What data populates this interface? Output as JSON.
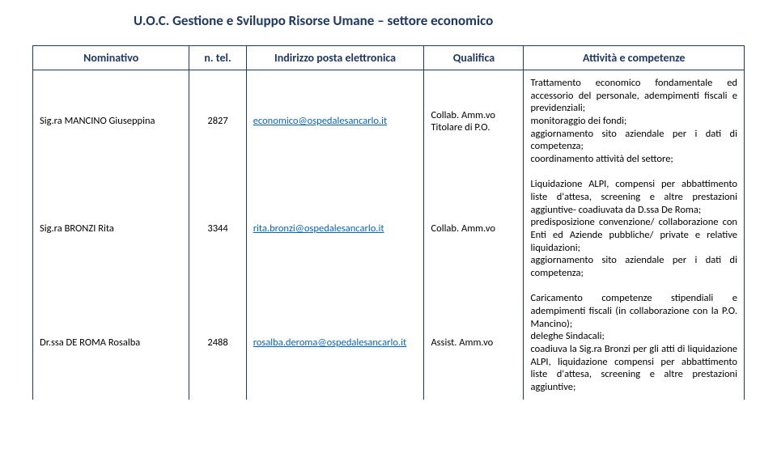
{
  "page_title": "U.O.C. Gestione e Sviluppo Risorse Umane – settore economico",
  "headers": {
    "name": "Nominativo",
    "tel": "n. tel.",
    "email": "Indirizzo posta elettronica",
    "qualifica": "Qualifica",
    "attivita": "Attività e competenze"
  },
  "rows": [
    {
      "name": "Sig.ra MANCINO Giuseppina",
      "tel": "2827",
      "email": "economico@ospedalesancarlo.it",
      "qualifica": "Collab. Amm.vo Titolare di P.O.",
      "attivita": "Trattamento economico fondamentale ed accessorio del personale, adempimenti fiscali e previdenziali;\nmonitoraggio dei fondi;\naggiornamento sito aziendale per i dati di competenza;\ncoordinamento attività del settore;"
    },
    {
      "name": "Sig.ra BRONZI Rita",
      "tel": "3344",
      "email": "rita.bronzi@ospedalesancarlo.it",
      "qualifica": "Collab. Amm.vo",
      "attivita": "Liquidazione ALPI, compensi per abbattimento liste d'attesa, screening e altre prestazioni aggiuntive- coadiuvata da D.ssa De Roma;\npredisposizione convenzione/ collaborazione con Enti ed Aziende pubbliche/ private e relative liquidazioni;\naggiornamento sito aziendale per i dati di competenza;"
    },
    {
      "name": "Dr.ssa DE ROMA Rosalba",
      "tel": "2488",
      "email": "rosalba.deroma@ospedalesancarlo.it",
      "qualifica": "Assist. Amm.vo",
      "attivita": "Caricamento competenze stipendiali e adempimenti fiscali (in collaborazione con la P.O. Mancino);\ndeleghe Sindacali;\ncoadiuva la Sig.ra Bronzi per gli atti di liquidazione ALPI, liquidazione compensi per abbattimento liste d'attesa, screening e altre prestazioni aggiuntive;"
    }
  ]
}
